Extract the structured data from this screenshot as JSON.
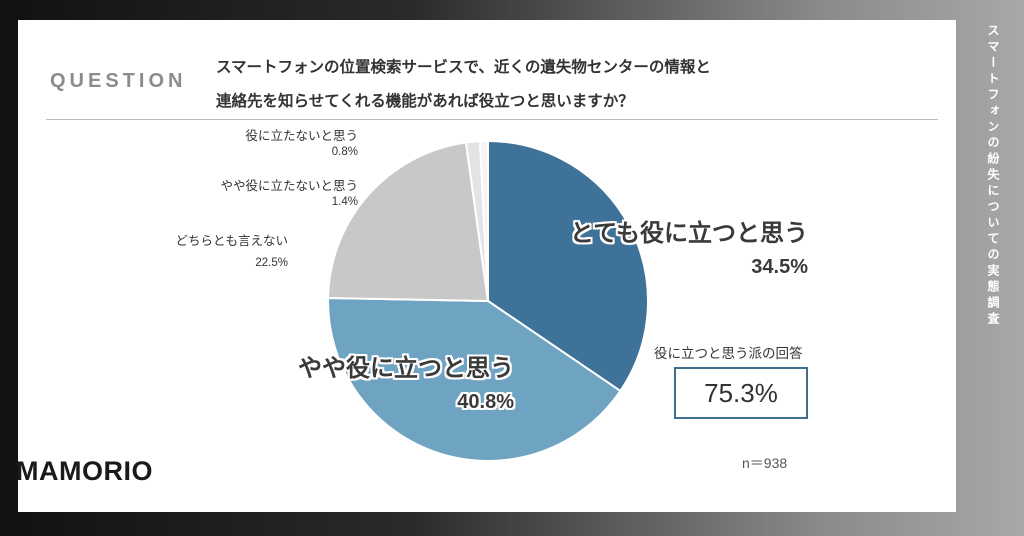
{
  "header": {
    "question_label": "QUESTION",
    "question_line1": "スマートフォンの位置検索サービスで、近くの遺失物センターの情報と",
    "question_line2": "連絡先を知らせてくれる機能があれば役立つと思いますか？"
  },
  "side_text": "スマートフォンの紛失についての実態調査",
  "brand": {
    "logo": "MAMORIO"
  },
  "summary": {
    "title": "役に立つと思う派の回答",
    "value": "75.3%",
    "sample": "n＝938"
  },
  "chart_data": {
    "type": "pie",
    "slices": [
      {
        "label": "とても役に立つと思う",
        "value": 34.5,
        "pct_label": "34.5%",
        "color": "#3f7298"
      },
      {
        "label": "やや役に立つと思う",
        "value": 40.8,
        "pct_label": "40.8%",
        "color": "#6fa3c2"
      },
      {
        "label": "どちらとも言えない",
        "value": 22.5,
        "pct_label": "22.5%",
        "color": "#c8c8c8"
      },
      {
        "label": "やや役に立たないと思う",
        "value": 1.4,
        "pct_label": "1.4%",
        "color": "#e3e3e3"
      },
      {
        "label": "役に立たないと思う",
        "value": 0.8,
        "pct_label": "0.8%",
        "color": "#f4f4f4"
      }
    ]
  }
}
